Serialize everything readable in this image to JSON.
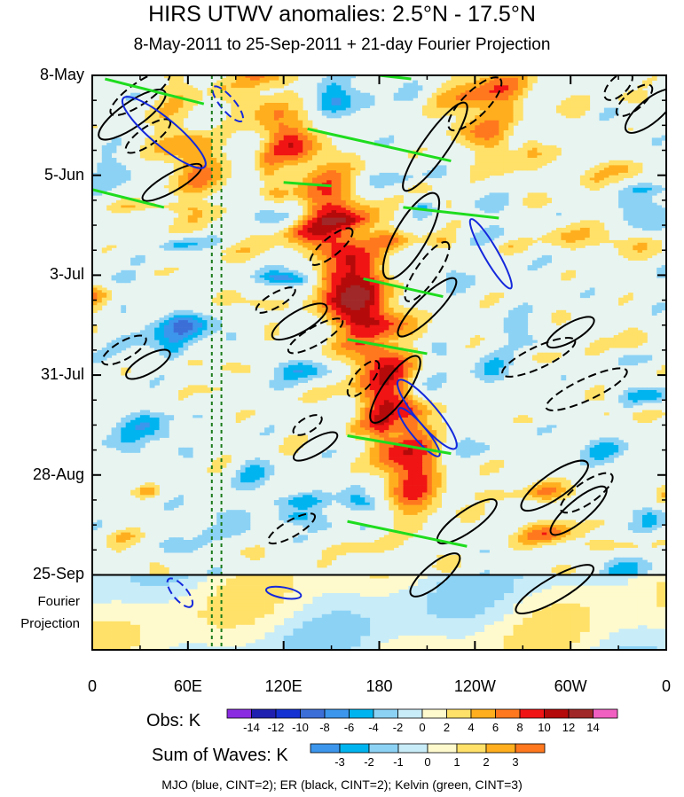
{
  "chart_data": {
    "type": "heatmap",
    "title": "HIRS UTWV anomalies: 2.5°N - 17.5°N",
    "subtitle": "8-May-2011 to 25-Sep-2011 + 21-day Fourier Projection",
    "x_ticks": [
      "0",
      "60E",
      "120E",
      "180",
      "120W",
      "60W",
      "0"
    ],
    "x_tick_lons": [
      0,
      60,
      120,
      180,
      240,
      300,
      360
    ],
    "xlim": [
      0,
      360
    ],
    "y_ticks": [
      "8-May",
      "5-Jun",
      "3-Jul",
      "31-Jul",
      "28-Aug",
      "25-Sep"
    ],
    "y_tick_days": [
      0,
      28,
      56,
      84,
      112,
      140
    ],
    "ylim_days": [
      0,
      161
    ],
    "projection_label": [
      "Fourier",
      "Projection"
    ],
    "projection_start_day": 140,
    "obs_colorbar": {
      "title": "Obs: K",
      "levels": [
        "-14",
        "-12",
        "-10",
        "-8",
        "-6",
        "-4",
        "-2",
        "0",
        "2",
        "4",
        "6",
        "8",
        "10",
        "12",
        "14"
      ],
      "colors": [
        "#8a2be2",
        "#2020b0",
        "#1432d2",
        "#3c6ed8",
        "#3c96ec",
        "#00b4f0",
        "#8cd2f5",
        "#c8ecf8",
        "#fffacd",
        "#ffe169",
        "#ffaf1e",
        "#ff781e",
        "#f01414",
        "#b40a0a",
        "#a02828",
        "#f060c0"
      ]
    },
    "waves_colorbar": {
      "title": "Sum of Waves: K",
      "levels": [
        "-3",
        "-2",
        "-1",
        "0",
        "1",
        "2",
        "3"
      ],
      "colors": [
        "#3c96ec",
        "#00b4f0",
        "#8cd2f5",
        "#c8ecf8",
        "#fffacd",
        "#ffe169",
        "#ffaf1e",
        "#ff781e"
      ]
    },
    "overlays": [
      {
        "name": "MJO",
        "color": "#1428dc"
      },
      {
        "name": "ER",
        "color": "#000000"
      },
      {
        "name": "Kelvin",
        "color": "#1edc1e"
      }
    ],
    "reference_longitudes": [
      75,
      81
    ],
    "annotation": "MJO (blue, CINT=2); ER (black, CINT=2); Kelvin (green, CINT=3)"
  }
}
